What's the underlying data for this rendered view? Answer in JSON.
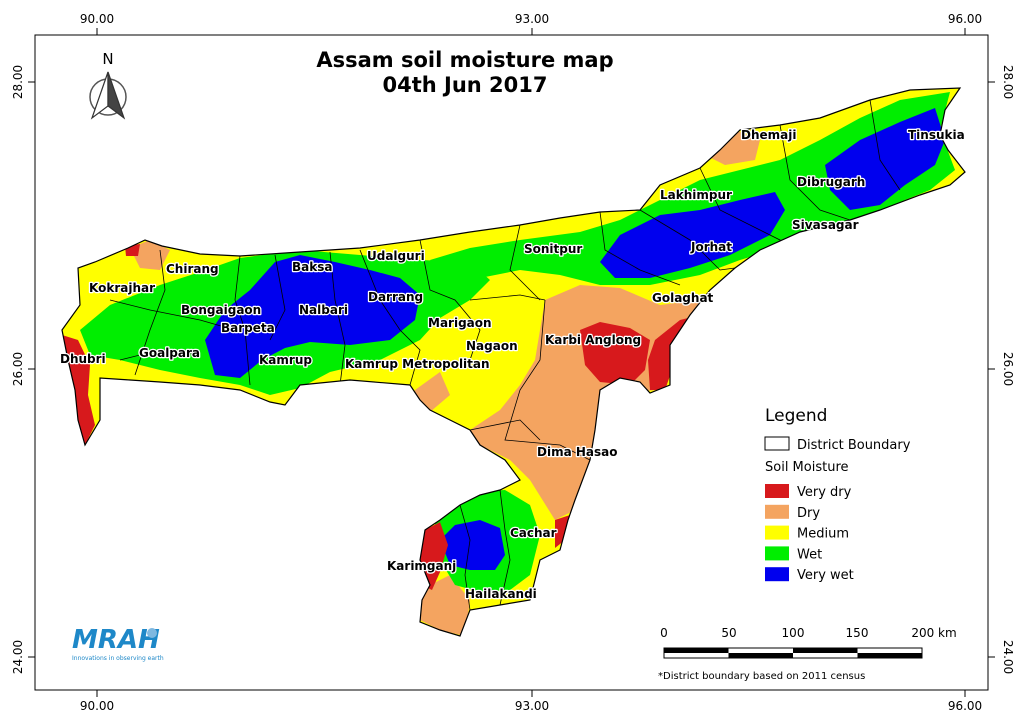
{
  "title": {
    "line1": "Assam soil moisture map",
    "line2": "04th Jun 2017"
  },
  "north_arrow": {
    "label": "N"
  },
  "coordinates": {
    "top": [
      "90.00",
      "93.00",
      "96.00"
    ],
    "bottom": [
      "90.00",
      "93.00",
      "96.00"
    ],
    "left": [
      "28.00",
      "26.00",
      "24.00"
    ],
    "right": [
      "28.00",
      "26.00",
      "24.00"
    ]
  },
  "districts": {
    "dhemaji": "Dhemaji",
    "tinsukia": "Tinsukia",
    "lakhimpur": "Lakhimpur",
    "dibrugarh": "Dibrugarh",
    "sivasagar": "Sivasagar",
    "jorhat": "Jorhat",
    "sonitpur": "Sonitpur",
    "udalguri": "Udalguri",
    "baksa": "Baksa",
    "chirang": "Chirang",
    "kokrajhar": "Kokrajhar",
    "bongaigaon": "Bongaigaon",
    "nalbari": "Nalbari",
    "darrang": "Darrang",
    "golaghat": "Golaghat",
    "barpeta": "Barpeta",
    "marigaon": "Marigaon",
    "nagaon": "Nagaon",
    "karbi_anglong": "Karbi Anglong",
    "dhubri": "Dhubri",
    "goalpara": "Goalpara",
    "kamrup": "Kamrup",
    "kamrup_metro": "Kamrup Metropolitan",
    "dima_hasao": "Dima Hasao",
    "cachar": "Cachar",
    "karimganj": "Karimganj",
    "hailakandi": "Hailakandi"
  },
  "legend": {
    "title": "Legend",
    "boundary_label": "District Boundary",
    "moisture_title": "Soil Moisture",
    "classes": [
      {
        "label": "Very dry",
        "color": "#d7191c"
      },
      {
        "label": "Dry",
        "color": "#f4a460"
      },
      {
        "label": "Medium",
        "color": "#ffff00"
      },
      {
        "label": "Wet",
        "color": "#00ee00"
      },
      {
        "label": "Very wet",
        "color": "#0000ee"
      }
    ]
  },
  "scale_bar": {
    "ticks": [
      "0",
      "50",
      "100",
      "150",
      "200 km"
    ]
  },
  "logo": {
    "text": "MRAH",
    "tagline": "Innovations in observing earth"
  },
  "footnote": "*District boundary based on 2011 census"
}
